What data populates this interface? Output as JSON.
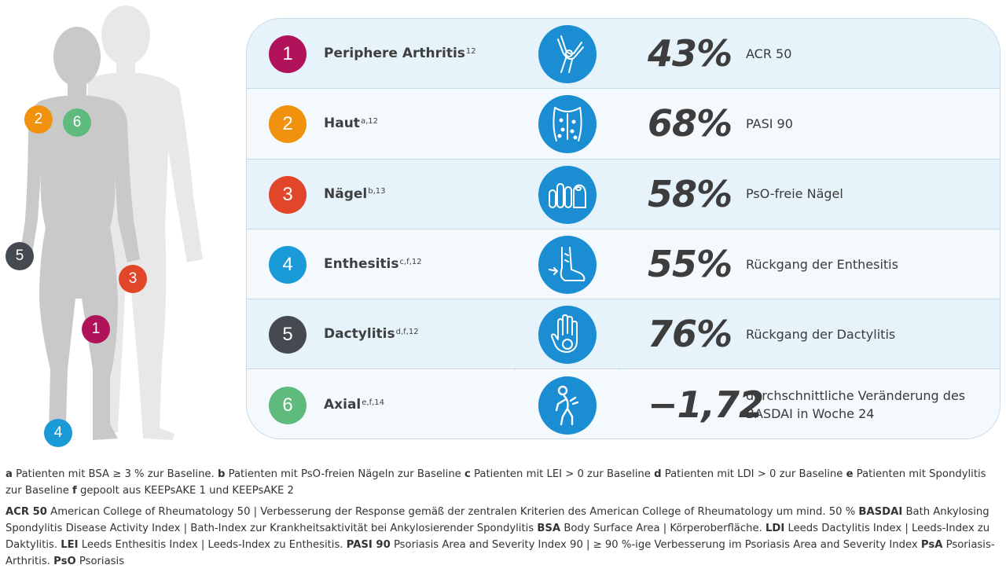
{
  "figures": {
    "markers": [
      {
        "label": "2",
        "color": "#f0920e"
      },
      {
        "label": "6",
        "color": "#5fba7d"
      },
      {
        "label": "5",
        "color": "#454a50"
      },
      {
        "label": "3",
        "color": "#e2462a"
      },
      {
        "label": "1",
        "color": "#b0135a"
      },
      {
        "label": "4",
        "color": "#1a9ad6"
      }
    ]
  },
  "rows": [
    {
      "num": "1",
      "color": "#b0135a",
      "label": "Periphere Arthritis",
      "sup": "12",
      "icon": "knee-joint-icon",
      "value": "43%",
      "desc": "ACR 50"
    },
    {
      "num": "2",
      "color": "#f0920e",
      "label": "Haut",
      "sup": "a,12",
      "icon": "skin-back-icon",
      "value": "68%",
      "desc": "PASI 90"
    },
    {
      "num": "3",
      "color": "#e2462a",
      "label": "Nägel",
      "sup": "b,13",
      "icon": "nails-icon",
      "value": "58%",
      "desc": "PsO-freie Nägel"
    },
    {
      "num": "4",
      "color": "#1a9ad6",
      "label": "Enthesitis",
      "sup": "c,f,12",
      "icon": "foot-heel-icon",
      "value": "55%",
      "desc": "Rückgang der Enthesitis"
    },
    {
      "num": "5",
      "color": "#454a50",
      "label": "Dactylitis",
      "sup": "d,f,12",
      "icon": "swollen-hand-icon",
      "value": "76%",
      "desc": "Rückgang der Dactylitis"
    },
    {
      "num": "6",
      "color": "#5fba7d",
      "label": "Axial",
      "sup": "e,f,14",
      "icon": "back-pain-icon",
      "value": "−1,72",
      "desc": "durchschnittliche Veränderung des BASDAI in Woche 24"
    }
  ],
  "footnotes": {
    "p1": [
      {
        "k": "a",
        "t": " Patienten mit BSA ≥ 3 % zur Baseline. "
      },
      {
        "k": "b",
        "t": " Patienten mit PsO-freien Nägeln zur Baseline "
      },
      {
        "k": "c",
        "t": " Patienten mit LEI > 0 zur Baseline "
      },
      {
        "k": "d",
        "t": " Patienten mit LDI > 0 zur Baseline "
      },
      {
        "k": "e",
        "t": " Patienten mit Spondylitis zur Baseline "
      },
      {
        "k": "f",
        "t": " gepoolt aus KEEPsAKE 1 und KEEPsAKE 2"
      }
    ],
    "p2": [
      {
        "k": "ACR 50",
        "t": " American College of Rheumatology 50 | Verbesserung der Response gemäß der zentralen Kriterien des American College of Rheumatology  um mind. 50 % "
      },
      {
        "k": "BASDAI",
        "t": " Bath Ankylosing Spondylitis Disease Activity Index | Bath-Index zur Krankheitsaktivität bei Ankylosierender Spondylitis "
      },
      {
        "k": "BSA",
        "t": " Body Surface Area | Körperoberfläche. "
      },
      {
        "k": "LDI",
        "t": " Leeds Dactylitis Index | Leeds-Index zu Daktylitis. "
      },
      {
        "k": "LEI",
        "t": " Leeds Enthesitis Index | Leeds-Index zu Enthesitis. "
      },
      {
        "k": "PASI 90",
        "t": " Psoriasis Area and Severity Index 90 | ≥ 90 %-ige Verbesserung im Psoriasis Area and Severity Index "
      },
      {
        "k": "PsA",
        "t": " Psoriasis-Arthritis. "
      },
      {
        "k": "PsO",
        "t": " Psoriasis"
      }
    ]
  }
}
